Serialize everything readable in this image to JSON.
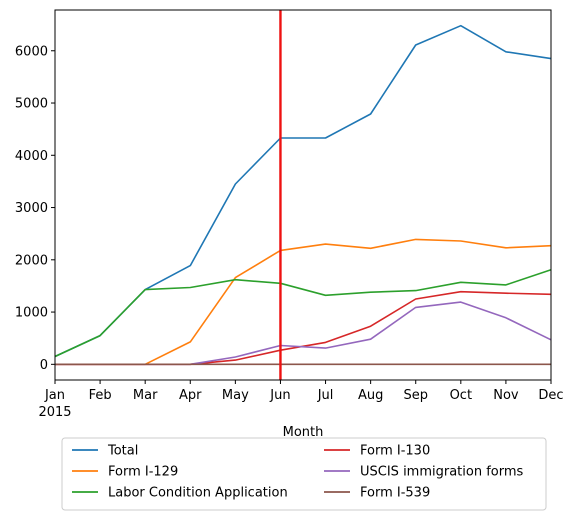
{
  "chart_data": {
    "type": "line",
    "x_tick_labels": [
      "Jan",
      "Feb",
      "Mar",
      "Apr",
      "May",
      "Jun",
      "Jul",
      "Aug",
      "Sep",
      "Oct",
      "Nov",
      "Dec"
    ],
    "x_year_label": "2015",
    "xlabel": "Month",
    "ylabel": "",
    "ylim": [
      -300,
      6780
    ],
    "y_ticks": [
      0,
      1000,
      2000,
      3000,
      4000,
      5000,
      6000
    ],
    "grid": false,
    "vertical_marker": {
      "x": "Jun",
      "color": "#ee1111"
    },
    "legend_position": "bottom-center",
    "series": [
      {
        "name": "Total",
        "color": "#1f77b4",
        "values": [
          150,
          550,
          1430,
          1890,
          3450,
          4330,
          4330,
          4790,
          6110,
          6480,
          5980,
          5850
        ]
      },
      {
        "name": "Form I-129",
        "color": "#ff7f0e",
        "values": [
          0,
          0,
          0,
          430,
          1660,
          2180,
          2300,
          2220,
          2390,
          2360,
          2230,
          2270
        ]
      },
      {
        "name": "Labor Condition Application",
        "color": "#2ca02c",
        "values": [
          150,
          550,
          1430,
          1470,
          1620,
          1550,
          1320,
          1380,
          1410,
          1570,
          1520,
          1810
        ]
      },
      {
        "name": "Form I-130",
        "color": "#d62728",
        "values": [
          0,
          0,
          0,
          0,
          80,
          270,
          420,
          730,
          1250,
          1390,
          1360,
          1340
        ]
      },
      {
        "name": "USCIS immigration forms",
        "color": "#9467bd",
        "values": [
          0,
          0,
          0,
          0,
          140,
          360,
          310,
          480,
          1090,
          1190,
          890,
          470
        ]
      },
      {
        "name": "Form I-539",
        "color": "#8c564b",
        "values": [
          0,
          0,
          0,
          0,
          0,
          0,
          0,
          0,
          0,
          0,
          0,
          0
        ]
      }
    ]
  }
}
